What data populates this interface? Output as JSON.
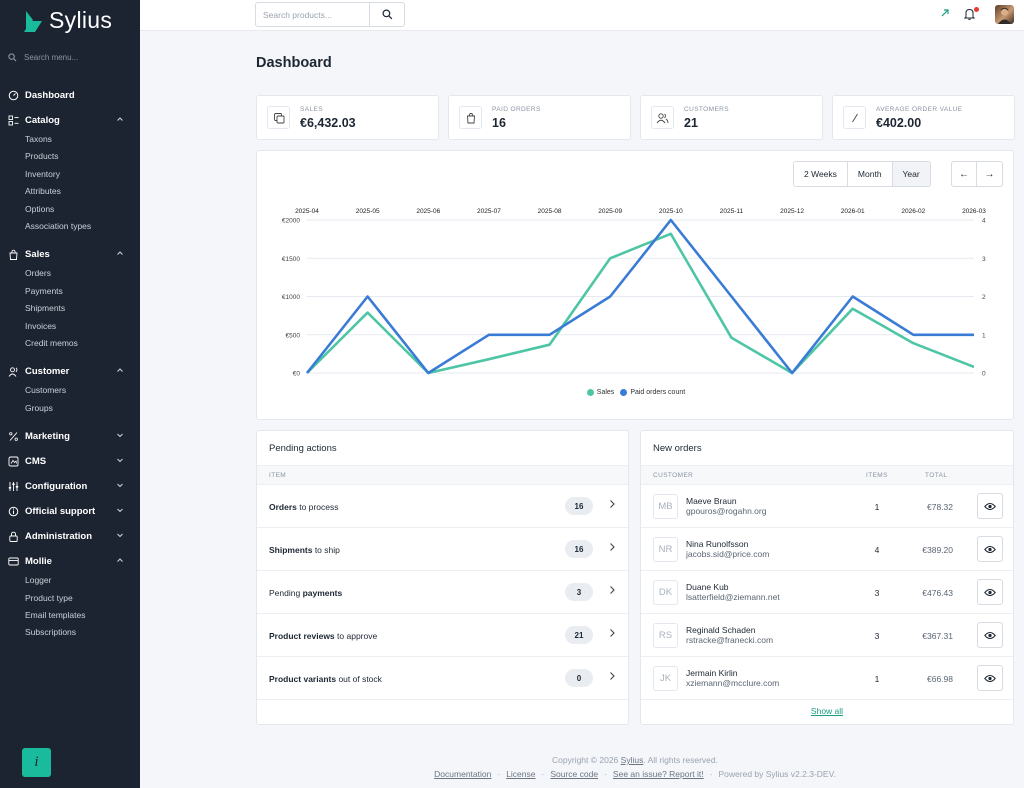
{
  "sidebar": {
    "brand": "Sylius",
    "search_placeholder": "Search menu...",
    "sections": [
      {
        "label": "Dashboard",
        "icon": "dashboard-icon",
        "items": []
      },
      {
        "label": "Catalog",
        "icon": "catalog-icon",
        "chevron": "up",
        "items": [
          "Taxons",
          "Products",
          "Inventory",
          "Attributes",
          "Options",
          "Association types"
        ]
      },
      {
        "label": "Sales",
        "icon": "bag-icon",
        "chevron": "up",
        "items": [
          "Orders",
          "Payments",
          "Shipments",
          "Invoices",
          "Credit memos"
        ]
      },
      {
        "label": "Customer",
        "icon": "users-icon",
        "chevron": "up",
        "items": [
          "Customers",
          "Groups"
        ]
      },
      {
        "label": "Marketing",
        "icon": "percent-icon",
        "chevron": "down",
        "items": []
      },
      {
        "label": "CMS",
        "icon": "cms-icon",
        "chevron": "down",
        "items": []
      },
      {
        "label": "Configuration",
        "icon": "sliders-icon",
        "chevron": "down",
        "items": []
      },
      {
        "label": "Official support",
        "icon": "support-icon",
        "chevron": "down",
        "items": []
      },
      {
        "label": "Administration",
        "icon": "lock-icon",
        "chevron": "down",
        "items": []
      },
      {
        "label": "Mollie",
        "icon": "card-icon",
        "chevron": "up",
        "items": [
          "Logger",
          "Product type",
          "Email templates",
          "Subscriptions"
        ]
      }
    ],
    "info_label": "i"
  },
  "topbar": {
    "search_placeholder": "Search products..."
  },
  "page_title": "Dashboard",
  "stats": [
    {
      "label": "Sales",
      "value": "€6,432.03",
      "icon": "coins-icon"
    },
    {
      "label": "Paid orders",
      "value": "16",
      "icon": "bag-icon"
    },
    {
      "label": "Customers",
      "value": "21",
      "icon": "users-icon"
    },
    {
      "label": "Average order value",
      "value": "€402.00",
      "icon": "slash-icon"
    }
  ],
  "chart_controls": {
    "ranges": [
      "2 Weeks",
      "Month",
      "Year"
    ],
    "selected": "Year"
  },
  "chart_data": {
    "type": "line",
    "x": [
      "2025-04",
      "2025-05",
      "2025-06",
      "2025-07",
      "2025-08",
      "2025-09",
      "2025-10",
      "2025-11",
      "2025-12",
      "2026-01",
      "2026-02",
      "2026-03"
    ],
    "series": [
      {
        "name": "Sales",
        "axis": "left",
        "color": "#4ec5a5",
        "values": [
          0,
          790,
          0,
          180,
          370,
          1500,
          1820,
          460,
          0,
          840,
          390,
          80
        ]
      },
      {
        "name": "Paid orders count",
        "axis": "right",
        "color": "#3a7bd5",
        "values": [
          0,
          2,
          0,
          1,
          1,
          2,
          4,
          2,
          0,
          2,
          1,
          1
        ]
      }
    ],
    "y_left": {
      "min": 0,
      "max": 2000,
      "ticks": [
        "€0",
        "€500",
        "€1000",
        "€1500",
        "€2000"
      ]
    },
    "y_right": {
      "min": 0,
      "max": 4,
      "ticks": [
        "0",
        "1",
        "2",
        "3",
        "4"
      ]
    },
    "grid": true,
    "legend": "bottom-center"
  },
  "pending": {
    "title": "Pending actions",
    "column": "Item",
    "rows": [
      {
        "bold": "Orders",
        "rest": " to process",
        "count": "16"
      },
      {
        "bold": "Shipments",
        "rest": " to ship",
        "count": "16"
      },
      {
        "pre": "Pending ",
        "bold": "payments",
        "rest": "",
        "count": "3"
      },
      {
        "bold": "Product reviews",
        "rest": " to approve",
        "count": "21"
      },
      {
        "bold": "Product variants",
        "rest": " out of stock",
        "count": "0"
      }
    ]
  },
  "new_orders": {
    "title": "New orders",
    "columns": {
      "customer": "Customer",
      "items": "Items",
      "total": "Total"
    },
    "rows": [
      {
        "initials": "MB",
        "name": "Maeve Braun",
        "email": "gpouros@rogahn.org",
        "items": "1",
        "total": "€78.32"
      },
      {
        "initials": "NR",
        "name": "Nina Runolfsson",
        "email": "jacobs.sid@price.com",
        "items": "4",
        "total": "€389.20"
      },
      {
        "initials": "DK",
        "name": "Duane Kub",
        "email": "lsatterfield@ziemann.net",
        "items": "3",
        "total": "€476.43"
      },
      {
        "initials": "RS",
        "name": "Reginald Schaden",
        "email": "rstracke@franecki.com",
        "items": "3",
        "total": "€367.31"
      },
      {
        "initials": "JK",
        "name": "Jermain Kirlin",
        "email": "xziemann@mcclure.com",
        "items": "1",
        "total": "€66.98"
      }
    ],
    "show_all": "Show all"
  },
  "footer": {
    "copyright_pre": "Copyright © 2026 ",
    "copyright_link": "Sylius",
    "copyright_post": ". All rights reserved.",
    "links": [
      "Documentation",
      "License",
      "Source code",
      "See an issue? Report it!"
    ],
    "powered": "Powered by Sylius v2.2.3-DEV."
  }
}
